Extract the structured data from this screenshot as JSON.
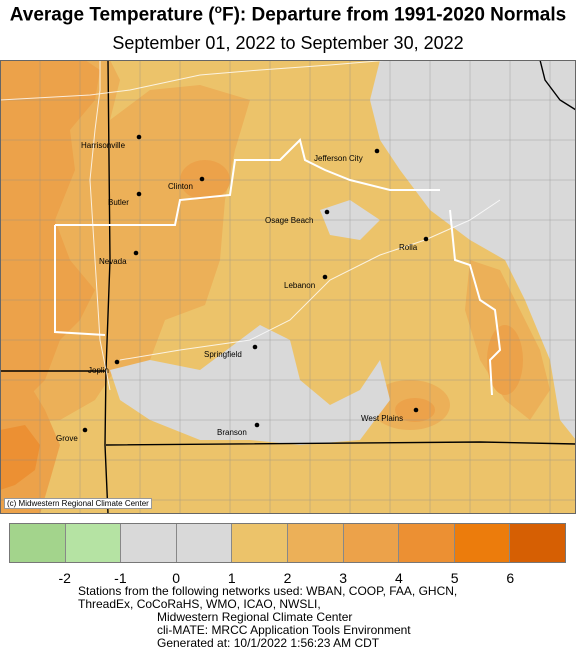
{
  "title_main": "Average Temperature (",
  "title_sup": "o",
  "title_rest": "F): Departure from 1991-2020 Normals",
  "subtitle": "September 01, 2022 to September 30, 2022",
  "credit": "(c) Midwestern Regional Climate Center",
  "cities": [
    {
      "name": "Harrisonville"
    },
    {
      "name": "Jefferson City"
    },
    {
      "name": "Clinton"
    },
    {
      "name": "Butler"
    },
    {
      "name": "Osage Beach"
    },
    {
      "name": "Rolla"
    },
    {
      "name": "Nevada"
    },
    {
      "name": "Lebanon"
    },
    {
      "name": "Springfield"
    },
    {
      "name": "Joplin"
    },
    {
      "name": "West Plains"
    },
    {
      "name": "Branson"
    },
    {
      "name": "Grove"
    }
  ],
  "legend": {
    "colors": [
      "#a3d48c",
      "#b5e3a3",
      "#d9d9d9",
      "#d9d9d9",
      "#ecc36a",
      "#ecb058",
      "#eca24a",
      "#ec9033",
      "#ec7c0c",
      "#d65f03"
    ],
    "ticks": [
      "-2",
      "-1",
      "0",
      "1",
      "2",
      "3",
      "4",
      "5",
      "6"
    ]
  },
  "footer": {
    "line1": "Stations from the following networks used: WBAN, COOP, FAA, GHCN,",
    "line2": "ThreadEx, CoCoRaHS, WMO, ICAO, NWSLI,",
    "line3": "Midwestern Regional Climate Center",
    "line4": "cli-MATE: MRCC Application Tools Environment",
    "line5": "Generated at: 10/1/2022 1:56:23 AM CDT"
  }
}
